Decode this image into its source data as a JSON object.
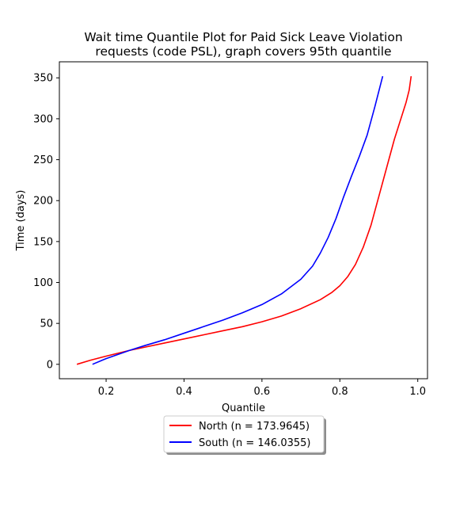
{
  "chart_data": {
    "type": "line",
    "title": [
      "Wait time Quantile Plot for Paid Sick Leave Violation",
      "requests (code PSL), graph covers 95th quantile"
    ],
    "xlabel": "Quantile",
    "ylabel": "Time (days)",
    "xlim": [
      0.08,
      1.025
    ],
    "ylim": [
      -17.6,
      369.6
    ],
    "x_ticks": [
      0.2,
      0.4,
      0.6,
      0.8,
      1.0
    ],
    "x_tick_labels": [
      "0.2",
      "0.4",
      "0.6",
      "0.8",
      "1.0"
    ],
    "y_ticks": [
      0,
      50,
      100,
      150,
      200,
      250,
      300,
      350
    ],
    "y_tick_labels": [
      "0",
      "50",
      "100",
      "150",
      "200",
      "250",
      "300",
      "350"
    ],
    "grid": false,
    "legend_position": "below",
    "series": [
      {
        "name": "North (n = 173.9645)",
        "color": "#ff0000",
        "points": [
          [
            0.125,
            0
          ],
          [
            0.16,
            5
          ],
          [
            0.2,
            10
          ],
          [
            0.26,
            17
          ],
          [
            0.3,
            21
          ],
          [
            0.35,
            26
          ],
          [
            0.4,
            31
          ],
          [
            0.45,
            36
          ],
          [
            0.5,
            41
          ],
          [
            0.55,
            46
          ],
          [
            0.6,
            52
          ],
          [
            0.65,
            59
          ],
          [
            0.7,
            68
          ],
          [
            0.75,
            79
          ],
          [
            0.78,
            88
          ],
          [
            0.8,
            96
          ],
          [
            0.82,
            107
          ],
          [
            0.84,
            122
          ],
          [
            0.86,
            143
          ],
          [
            0.88,
            170
          ],
          [
            0.9,
            205
          ],
          [
            0.92,
            240
          ],
          [
            0.94,
            275
          ],
          [
            0.96,
            305
          ],
          [
            0.97,
            320
          ],
          [
            0.978,
            335
          ],
          [
            0.983,
            352
          ]
        ]
      },
      {
        "name": "South (n = 146.0355)",
        "color": "#0000ff",
        "points": [
          [
            0.165,
            0
          ],
          [
            0.2,
            7
          ],
          [
            0.26,
            17
          ],
          [
            0.3,
            23
          ],
          [
            0.35,
            30
          ],
          [
            0.4,
            38
          ],
          [
            0.45,
            46
          ],
          [
            0.5,
            54
          ],
          [
            0.55,
            63
          ],
          [
            0.6,
            73
          ],
          [
            0.65,
            86
          ],
          [
            0.7,
            104
          ],
          [
            0.73,
            120
          ],
          [
            0.75,
            136
          ],
          [
            0.77,
            155
          ],
          [
            0.79,
            178
          ],
          [
            0.81,
            205
          ],
          [
            0.83,
            230
          ],
          [
            0.85,
            254
          ],
          [
            0.87,
            280
          ],
          [
            0.89,
            315
          ],
          [
            0.91,
            352
          ]
        ]
      }
    ]
  }
}
